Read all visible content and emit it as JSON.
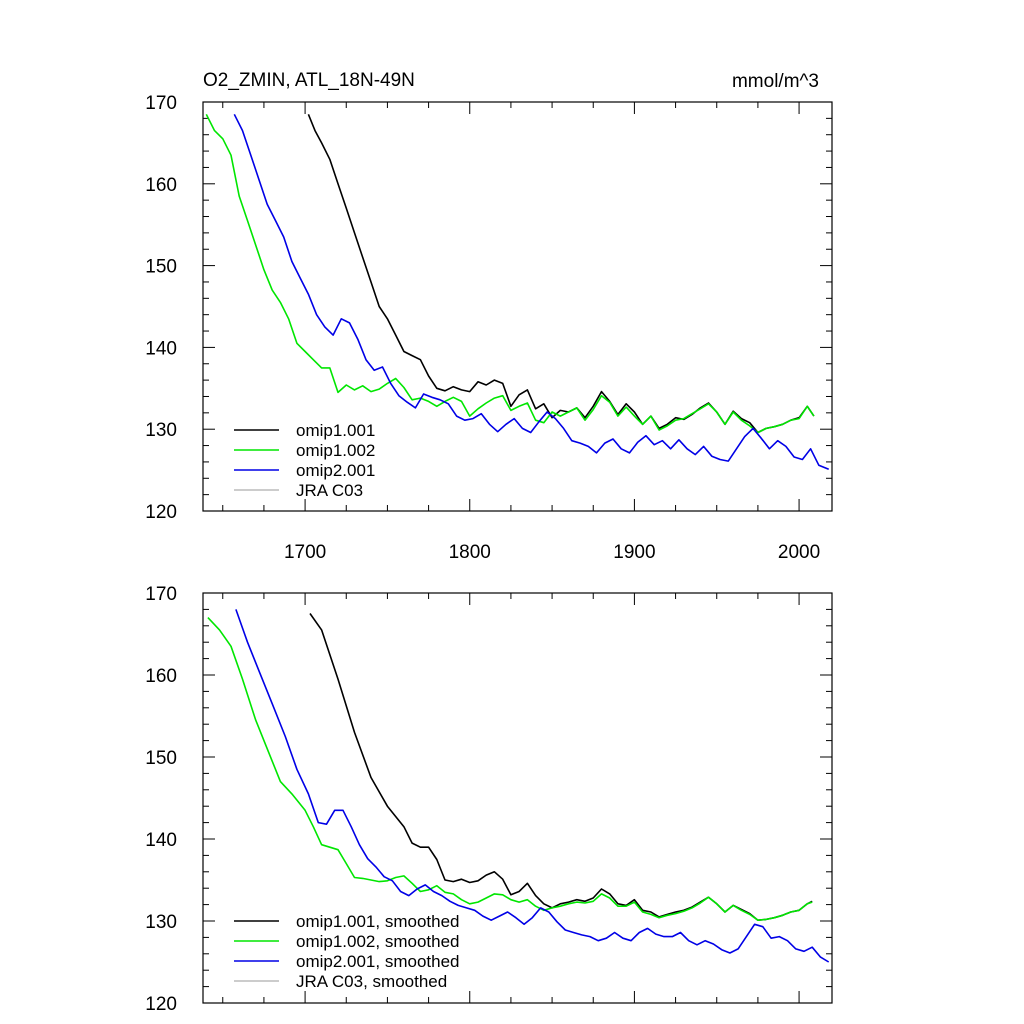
{
  "figure": {
    "title_left": "O2_ZMIN, ATL_18N-49N",
    "title_right": "mmol/m^3"
  },
  "chart_data": [
    {
      "type": "line",
      "title": "O2_ZMIN, ATL_18N-49N",
      "units": "mmol/m^3",
      "xlim": [
        1638,
        2020
      ],
      "ylim": [
        120,
        170
      ],
      "xticks": [
        1700,
        1800,
        1900,
        2000
      ],
      "yticks": [
        120,
        130,
        140,
        150,
        160,
        170
      ],
      "show_xtick_labels": true,
      "legend_position": "bottom-left",
      "series": [
        {
          "name": "omip1.001",
          "color": "#000000",
          "x": [
            1702,
            1706,
            1710,
            1715,
            1720,
            1725,
            1730,
            1735,
            1740,
            1745,
            1750,
            1755,
            1760,
            1765,
            1770,
            1775,
            1780,
            1785,
            1790,
            1795,
            1800,
            1805,
            1810,
            1815,
            1820,
            1825,
            1830,
            1835,
            1840,
            1845,
            1850,
            1855,
            1860,
            1865,
            1870,
            1875,
            1880,
            1885,
            1890,
            1895,
            1900,
            1905,
            1910,
            1915,
            1920,
            1925,
            1930,
            1935,
            1940,
            1945,
            1950,
            1955,
            1960,
            1965,
            1970,
            1975,
            1980,
            1985,
            1990,
            1995,
            2000,
            2005,
            2009
          ],
          "y": [
            168.5,
            166.5,
            165,
            163,
            160,
            157,
            154,
            151,
            148,
            145,
            143.5,
            141.5,
            139.5,
            139,
            138.5,
            136.5,
            135,
            134.7,
            135.2,
            134.8,
            134.6,
            135.8,
            135.4,
            136,
            135.6,
            132.8,
            134.2,
            134.8,
            132.5,
            133.1,
            131.4,
            132.3,
            132.1,
            132.6,
            131.4,
            132.8,
            134.6,
            133.4,
            131.8,
            133.1,
            132.1,
            130.6,
            131.6,
            130.1,
            130.6,
            131.4,
            131.2,
            131.8,
            132.6,
            133.2,
            132.1,
            130.6,
            132.2,
            131.3,
            130.8,
            129.6,
            130.1,
            130.3,
            130.6,
            131.1,
            131.4,
            132.8,
            131.6
          ]
        },
        {
          "name": "omip1.002",
          "color": "#00e600",
          "x": [
            1640,
            1645,
            1650,
            1655,
            1660,
            1665,
            1670,
            1675,
            1680,
            1685,
            1690,
            1695,
            1700,
            1705,
            1710,
            1715,
            1720,
            1725,
            1730,
            1735,
            1740,
            1745,
            1750,
            1755,
            1760,
            1765,
            1770,
            1775,
            1780,
            1785,
            1790,
            1795,
            1800,
            1805,
            1810,
            1815,
            1820,
            1825,
            1830,
            1835,
            1840,
            1845,
            1850,
            1855,
            1860,
            1865,
            1870,
            1875,
            1880,
            1885,
            1890,
            1895,
            1900,
            1905,
            1910,
            1915,
            1920,
            1925,
            1930,
            1935,
            1940,
            1945,
            1950,
            1955,
            1960,
            1965,
            1970,
            1975,
            1980,
            1985,
            1990,
            1995,
            2000,
            2005,
            2009
          ],
          "y": [
            168.5,
            166.5,
            165.5,
            163.5,
            158.5,
            155.5,
            152.5,
            149.5,
            147,
            145.5,
            143.5,
            140.5,
            139.5,
            138.5,
            137.5,
            137.5,
            134.5,
            135.4,
            134.8,
            135.3,
            134.6,
            134.9,
            135.6,
            136.2,
            135.1,
            133.6,
            133.8,
            133.4,
            132.8,
            133.4,
            133.9,
            133.4,
            131.6,
            132.5,
            133.2,
            133.8,
            134.1,
            132.3,
            132.8,
            133.2,
            131.1,
            130.8,
            132.1,
            131.6,
            132.1,
            132.6,
            131.1,
            132.4,
            134.1,
            133.3,
            131.6,
            132.7,
            131.6,
            130.6,
            131.6,
            129.9,
            130.4,
            131.1,
            131.3,
            131.9,
            132.5,
            133.1,
            132.1,
            130.6,
            132.1,
            131.1,
            130.4,
            129.6,
            130.1,
            130.3,
            130.6,
            131.1,
            131.3,
            132.8,
            131.6
          ]
        },
        {
          "name": "omip2.001",
          "color": "#0000e6",
          "x": [
            1657,
            1662,
            1667,
            1672,
            1677,
            1682,
            1687,
            1692,
            1697,
            1702,
            1707,
            1712,
            1717,
            1722,
            1727,
            1732,
            1737,
            1742,
            1747,
            1752,
            1757,
            1762,
            1767,
            1772,
            1777,
            1782,
            1787,
            1792,
            1797,
            1802,
            1807,
            1812,
            1817,
            1822,
            1827,
            1832,
            1837,
            1842,
            1847,
            1852,
            1857,
            1862,
            1867,
            1872,
            1877,
            1882,
            1887,
            1892,
            1897,
            1902,
            1907,
            1912,
            1917,
            1922,
            1927,
            1932,
            1937,
            1942,
            1947,
            1952,
            1957,
            1962,
            1967,
            1972,
            1977,
            1982,
            1987,
            1992,
            1997,
            2002,
            2007,
            2012,
            2018
          ],
          "y": [
            168.5,
            166.5,
            163.5,
            160.5,
            157.5,
            155.5,
            153.5,
            150.5,
            148.5,
            146.5,
            144,
            142.5,
            141.5,
            143.5,
            143,
            141,
            138.5,
            137.2,
            137.6,
            135.6,
            134.1,
            133.3,
            132.6,
            134.3,
            133.9,
            133.6,
            133.1,
            131.6,
            131.1,
            131.3,
            131.9,
            130.6,
            129.7,
            130.6,
            131.3,
            130.1,
            129.6,
            130.9,
            132.1,
            131.3,
            130.1,
            128.6,
            128.3,
            127.9,
            127.1,
            128.3,
            128.8,
            127.6,
            127.1,
            128.4,
            129.2,
            128.1,
            128.6,
            127.6,
            128.7,
            127.6,
            126.9,
            127.9,
            126.7,
            126.3,
            126.1,
            127.6,
            129.1,
            130.1,
            128.9,
            127.6,
            128.6,
            127.9,
            126.6,
            126.3,
            127.6,
            125.6,
            125.1
          ]
        },
        {
          "name": "JRA C03",
          "color": "#bbbbbb",
          "x": [],
          "y": []
        }
      ]
    },
    {
      "type": "line",
      "title": "",
      "xlim": [
        1638,
        2020
      ],
      "ylim": [
        120,
        170
      ],
      "xticks": [
        1700,
        1800,
        1900,
        2000
      ],
      "yticks": [
        120,
        130,
        140,
        150,
        160,
        170
      ],
      "show_xtick_labels": false,
      "legend_position": "bottom-left",
      "series": [
        {
          "name": "omip1.001, smoothed",
          "color": "#000000",
          "x": [
            1703,
            1710,
            1720,
            1730,
            1740,
            1750,
            1760,
            1765,
            1770,
            1775,
            1780,
            1785,
            1790,
            1795,
            1800,
            1805,
            1810,
            1815,
            1820,
            1825,
            1830,
            1835,
            1840,
            1845,
            1850,
            1855,
            1860,
            1865,
            1870,
            1875,
            1880,
            1885,
            1890,
            1895,
            1900,
            1905,
            1910,
            1915,
            1920,
            1925,
            1930,
            1935,
            1940,
            1945,
            1950,
            1955,
            1960,
            1965,
            1970,
            1975,
            1980,
            1985,
            1990,
            1995,
            2000,
            2005,
            2008
          ],
          "y": [
            167.5,
            165.5,
            159.5,
            153,
            147.5,
            144,
            141.5,
            139.5,
            139,
            139,
            137.5,
            135,
            134.8,
            135.1,
            134.7,
            134.9,
            135.6,
            136,
            135.1,
            133.2,
            133.6,
            134.6,
            133.1,
            132.1,
            131.6,
            132.1,
            132.3,
            132.6,
            132.4,
            132.8,
            133.9,
            133.3,
            132.1,
            131.9,
            132.6,
            131.3,
            131.1,
            130.5,
            130.8,
            131.1,
            131.3,
            131.7,
            132.3,
            132.9,
            132.1,
            131.1,
            131.9,
            131.4,
            130.9,
            130.1,
            130.2,
            130.4,
            130.7,
            131.1,
            131.3,
            132.1,
            132.4
          ]
        },
        {
          "name": "omip1.002, smoothed",
          "color": "#00e600",
          "x": [
            1641,
            1648,
            1655,
            1662,
            1670,
            1678,
            1685,
            1692,
            1700,
            1705,
            1710,
            1715,
            1720,
            1725,
            1730,
            1735,
            1740,
            1745,
            1750,
            1755,
            1760,
            1765,
            1770,
            1775,
            1780,
            1785,
            1790,
            1795,
            1800,
            1805,
            1810,
            1815,
            1820,
            1825,
            1830,
            1835,
            1840,
            1845,
            1850,
            1855,
            1860,
            1865,
            1870,
            1875,
            1880,
            1885,
            1890,
            1895,
            1900,
            1905,
            1910,
            1915,
            1920,
            1925,
            1930,
            1935,
            1940,
            1945,
            1950,
            1955,
            1960,
            1965,
            1970,
            1975,
            1980,
            1985,
            1990,
            1995,
            2000,
            2005,
            2008
          ],
          "y": [
            167,
            165.5,
            163.5,
            159.5,
            154.5,
            150.5,
            147,
            145.5,
            143.5,
            141.5,
            139.3,
            139,
            138.7,
            137,
            135.3,
            135.2,
            135,
            134.8,
            134.9,
            135.3,
            135.5,
            134.6,
            133.6,
            133.8,
            134.3,
            133.5,
            133.3,
            132.6,
            132.1,
            132.3,
            132.8,
            133.3,
            133.2,
            132.6,
            132.3,
            132.6,
            131.8,
            131.3,
            131.6,
            131.8,
            132.1,
            132.3,
            132.2,
            132.4,
            133.3,
            132.8,
            131.8,
            131.8,
            132.3,
            131.1,
            130.8,
            130.4,
            130.7,
            130.9,
            131.2,
            131.6,
            132.2,
            132.9,
            132.1,
            131.1,
            131.9,
            131.3,
            130.8,
            130.1,
            130.2,
            130.4,
            130.7,
            131.1,
            131.3,
            132.1,
            132.3
          ]
        },
        {
          "name": "omip2.001, smoothed",
          "color": "#0000e6",
          "x": [
            1658,
            1665,
            1672,
            1680,
            1688,
            1695,
            1702,
            1708,
            1713,
            1718,
            1723,
            1728,
            1733,
            1738,
            1743,
            1748,
            1753,
            1758,
            1763,
            1768,
            1773,
            1778,
            1783,
            1788,
            1793,
            1798,
            1803,
            1808,
            1813,
            1818,
            1823,
            1828,
            1833,
            1838,
            1843,
            1848,
            1853,
            1858,
            1863,
            1868,
            1873,
            1878,
            1883,
            1888,
            1893,
            1898,
            1903,
            1908,
            1913,
            1918,
            1923,
            1928,
            1933,
            1938,
            1943,
            1948,
            1953,
            1958,
            1963,
            1968,
            1973,
            1978,
            1983,
            1988,
            1993,
            1998,
            2003,
            2008,
            2013,
            2018
          ],
          "y": [
            168,
            164,
            160.5,
            156.5,
            152.5,
            148.5,
            145.5,
            142,
            141.8,
            143.5,
            143.5,
            141.5,
            139.3,
            137.6,
            136.6,
            135.4,
            134.9,
            133.6,
            133.1,
            133.9,
            134.4,
            133.6,
            133.1,
            132.4,
            131.9,
            131.6,
            131.3,
            130.6,
            130.1,
            130.6,
            131.1,
            130.4,
            129.6,
            130.4,
            131.6,
            131.1,
            129.9,
            128.9,
            128.6,
            128.3,
            128.1,
            127.6,
            127.9,
            128.6,
            127.9,
            127.6,
            128.6,
            129.1,
            128.4,
            128.1,
            128.1,
            128.6,
            127.6,
            127.1,
            127.6,
            127.2,
            126.5,
            126.1,
            126.6,
            128.1,
            129.6,
            129.3,
            127.9,
            128.1,
            127.6,
            126.6,
            126.3,
            126.8,
            125.6,
            125
          ]
        },
        {
          "name": "JRA C03, smoothed",
          "color": "#bbbbbb",
          "x": [],
          "y": []
        }
      ]
    }
  ]
}
